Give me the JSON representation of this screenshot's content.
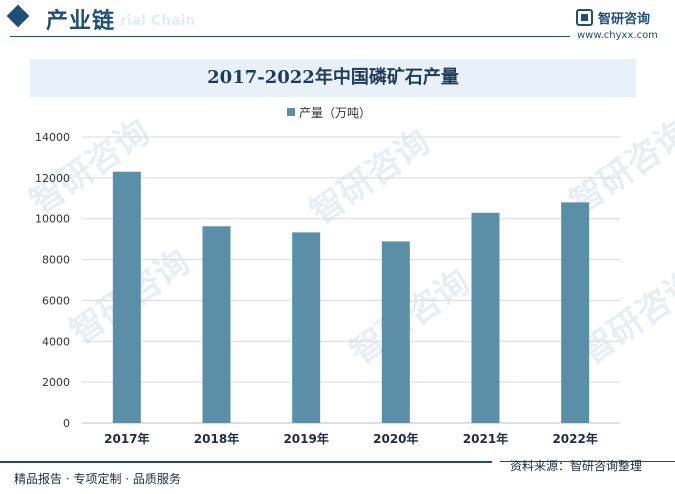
{
  "header": {
    "section_title": "产业链",
    "watermark_text": "rial Chain",
    "brand_name": "智研咨询",
    "brand_url": "www.chyxx.com"
  },
  "watermarks": [
    "智研咨询",
    "智研咨询",
    "智研咨询",
    "智研咨询",
    "智研咨询",
    "智研咨询"
  ],
  "chart_data": {
    "type": "bar",
    "title": "2017-2022年中国磷矿石产量",
    "categories": [
      "2017年",
      "2018年",
      "2019年",
      "2020年",
      "2021年",
      "2022年"
    ],
    "series": [
      {
        "name": "产量（万吨）",
        "values": [
          12300,
          9630,
          9330,
          8890,
          10290,
          10800
        ]
      }
    ],
    "ylim": [
      0,
      14000
    ],
    "yticks": [
      0,
      2000,
      4000,
      6000,
      8000,
      10000,
      12000,
      14000
    ],
    "grid": true,
    "legend": "top-center",
    "bar_color": "#5b8fa8",
    "grid_color": "#d9d9d9"
  },
  "footer": {
    "left": "精品报告 · 专项定制 · 品质服务",
    "right": "资料来源：智研咨询整理"
  }
}
